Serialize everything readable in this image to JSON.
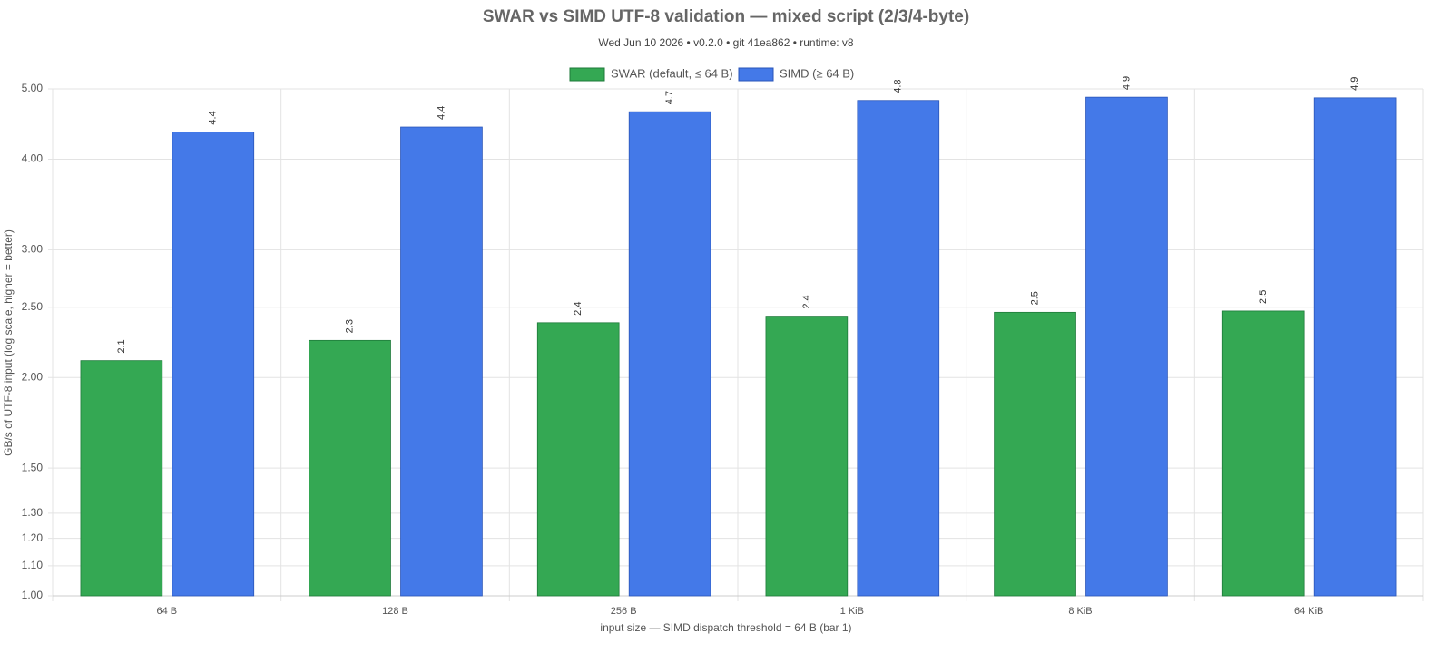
{
  "chart_data": {
    "type": "bar",
    "title": "SWAR vs SIMD UTF-8 validation — mixed script (2/3/4-byte)",
    "subtitle": "Wed Jun 10 2026 • v0.2.0 • git 41ea862 • runtime: v8",
    "x_label": "input size — SIMD dispatch threshold = 64 B (bar 1)",
    "y_label": "GB/s of UTF-8 input (log scale, higher = better)",
    "categories": [
      "64 B",
      "128 B",
      "256 B",
      "1 KiB",
      "8 KiB",
      "64 KiB"
    ],
    "series": [
      {
        "name": "SWAR (default, ≤ 64 B)",
        "color": "#34a853",
        "border": "#1e7a3a",
        "values": [
          2.11,
          2.25,
          2.38,
          2.43,
          2.46,
          2.47
        ],
        "value_labels": [
          "2.1",
          "2.3",
          "2.4",
          "2.4",
          "2.5",
          "2.5"
        ]
      },
      {
        "name": "SIMD (≥ 64 B)",
        "color": "#4479e8",
        "border": "#2a55b8",
        "values": [
          4.36,
          4.43,
          4.65,
          4.82,
          4.87,
          4.86
        ],
        "value_labels": [
          "4.4",
          "4.4",
          "4.7",
          "4.8",
          "4.9",
          "4.9"
        ]
      }
    ],
    "log_scale": true,
    "ylim": [
      1,
      5
    ],
    "yticks": [
      {
        "value": 1,
        "label": "1.00"
      },
      {
        "value": 1.1,
        "label": "1.10"
      },
      {
        "value": 1.2,
        "label": "1.20"
      },
      {
        "value": 1.3,
        "label": "1.30"
      },
      {
        "value": 1.5,
        "label": "1.50"
      },
      {
        "value": 2,
        "label": "2.00"
      },
      {
        "value": 2.5,
        "label": "2.50"
      },
      {
        "value": 3,
        "label": "3.00"
      },
      {
        "value": 4,
        "label": "4.00"
      },
      {
        "value": 5,
        "label": "5.00"
      }
    ],
    "grid": true,
    "legend": "top"
  }
}
